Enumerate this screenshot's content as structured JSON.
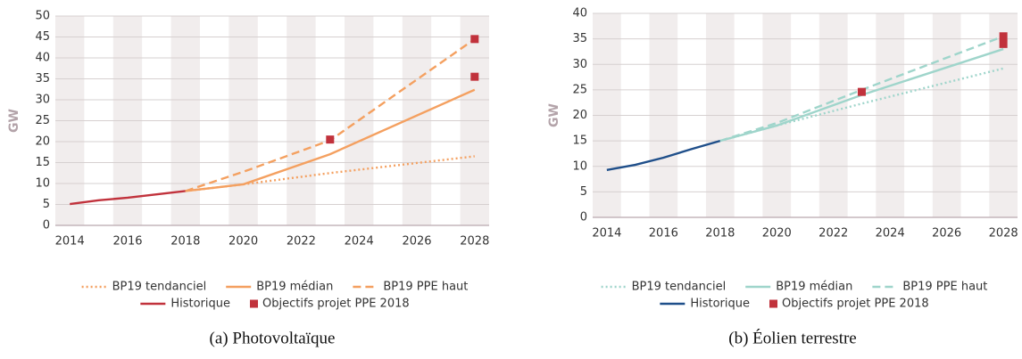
{
  "chart_data": [
    {
      "type": "line",
      "y_label": "GW",
      "caption": "(a) Photovoltaïque",
      "xlim": [
        2013.5,
        2028.5
      ],
      "xticks": [
        2014,
        2016,
        2018,
        2020,
        2022,
        2024,
        2026,
        2028
      ],
      "ylim": [
        0,
        50
      ],
      "yticks": [
        0,
        5,
        10,
        15,
        20,
        25,
        30,
        35,
        40,
        45,
        50
      ],
      "grid": true,
      "series": [
        {
          "name": "BP19 tendanciel",
          "color": "#f4a060",
          "style": "dotted",
          "x": [
            2018,
            2020,
            2023,
            2028
          ],
          "values": [
            8.2,
            9.8,
            12.5,
            16.5
          ]
        },
        {
          "name": "BP19 médian",
          "color": "#f4a060",
          "style": "solid",
          "x": [
            2018,
            2020,
            2023,
            2028
          ],
          "values": [
            8.2,
            9.8,
            17,
            32.4
          ]
        },
        {
          "name": "BP19 PPE haut",
          "color": "#f4a060",
          "style": "dashed",
          "x": [
            2018,
            2020,
            2023,
            2028
          ],
          "values": [
            8.2,
            12.8,
            20.3,
            44.5
          ]
        },
        {
          "name": "Historique",
          "color": "#c1323c",
          "style": "solid",
          "x": [
            2014,
            2015,
            2016,
            2017,
            2018
          ],
          "values": [
            5.1,
            6,
            6.6,
            7.4,
            8.2
          ]
        },
        {
          "name": "Objectifs projet PPE 2018",
          "color": "#c1323c",
          "style": "square",
          "x": [
            2023,
            2028,
            2028
          ],
          "values": [
            20.5,
            44.5,
            35.5
          ]
        }
      ]
    },
    {
      "type": "line",
      "y_label": "GW",
      "caption": "(b) Éolien terrestre",
      "xlim": [
        2013.5,
        2028.5
      ],
      "xticks": [
        2014,
        2016,
        2018,
        2020,
        2022,
        2024,
        2026,
        2028
      ],
      "ylim": [
        0,
        40
      ],
      "yticks": [
        0,
        5,
        10,
        15,
        20,
        25,
        30,
        35,
        40
      ],
      "grid": true,
      "series": [
        {
          "name": "BP19 tendanciel",
          "color": "#9fd5cb",
          "style": "dotted",
          "x": [
            2018,
            2020,
            2023,
            2028
          ],
          "values": [
            15,
            18,
            22.3,
            29.2
          ]
        },
        {
          "name": "BP19 médian",
          "color": "#9fd5cb",
          "style": "solid",
          "x": [
            2018,
            2020,
            2023,
            2028
          ],
          "values": [
            15,
            18,
            24,
            33
          ]
        },
        {
          "name": "BP19 PPE haut",
          "color": "#9fd5cb",
          "style": "dashed",
          "x": [
            2018,
            2020,
            2023,
            2028
          ],
          "values": [
            15,
            18.5,
            25,
            35.5
          ]
        },
        {
          "name": "Historique",
          "color": "#1f4f8a",
          "style": "solid",
          "x": [
            2014,
            2015,
            2016,
            2017,
            2018
          ],
          "values": [
            9.3,
            10.3,
            11.7,
            13.4,
            15
          ]
        },
        {
          "name": "Objectifs projet PPE 2018",
          "color": "#c1323c",
          "style": "square",
          "x": [
            2023,
            2028,
            2028
          ],
          "values": [
            24.6,
            35.5,
            34
          ]
        }
      ]
    }
  ]
}
